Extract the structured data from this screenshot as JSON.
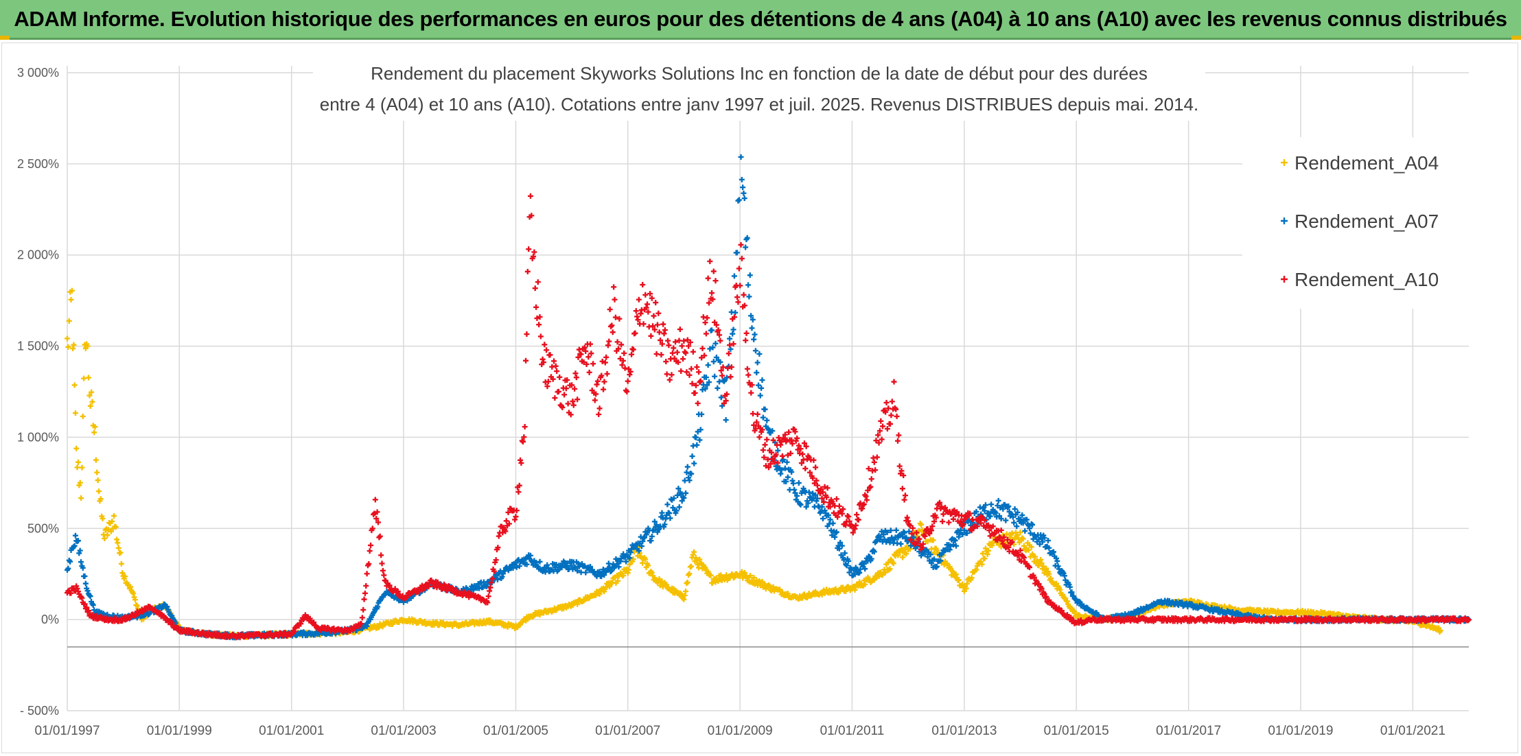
{
  "banner": {
    "title": "ADAM Informe. Evolution historique des performances en euros pour des détentions de 4 ans (A04) à 10 ans (A10) avec les revenus connus distribués"
  },
  "colors": {
    "banner_bg": "#7dc67e",
    "Rendement_A04": "#f5c000",
    "Rendement_A07": "#0070c0",
    "Rendement_A10": "#e8101e"
  },
  "chart_data": {
    "type": "scatter",
    "title_line1": "Rendement du placement Skyworks Solutions Inc en fonction de la date de début pour des durées",
    "title_line2": "entre 4 (A04) et 10 ans (A10). Cotations entre janv 1997 et juil. 2025. Revenus DISTRIBUES depuis mai. 2014.",
    "xlabel": "",
    "ylabel": "",
    "x_type": "date",
    "xlim": [
      "1997-01-01",
      "2022-01-01"
    ],
    "ylim": [
      -500,
      3000
    ],
    "grid": true,
    "marker": "+",
    "legend_position": "right",
    "y_ticks": [
      -500,
      0,
      500,
      1000,
      1500,
      2000,
      2500,
      3000
    ],
    "y_tick_labels": [
      "- 500%",
      "0%",
      "500%",
      "1 000%",
      "1 500%",
      "2 000%",
      "2 500%",
      "3 000%"
    ],
    "x_ticks": [
      "1997-01-01",
      "1999-01-01",
      "2001-01-01",
      "2003-01-01",
      "2005-01-01",
      "2007-01-01",
      "2009-01-01",
      "2011-01-01",
      "2013-01-01",
      "2015-01-01",
      "2017-01-01",
      "2019-01-01",
      "2021-01-01"
    ],
    "x_tick_labels": [
      "01/01/1997",
      "01/01/1999",
      "01/01/2001",
      "01/01/2003",
      "01/01/2005",
      "01/01/2007",
      "01/01/2009",
      "01/01/2011",
      "01/01/2013",
      "01/01/2015",
      "01/01/2017",
      "01/01/2019",
      "01/01/2021"
    ],
    "series": [
      {
        "name": "Rendement_A04",
        "x": [
          "1997-01-01",
          "1997-02-01",
          "1997-03-01",
          "1997-04-01",
          "1997-05-01",
          "1997-06-01",
          "1997-07-01",
          "1997-08-01",
          "1997-09-01",
          "1997-11-01",
          "1998-01-01",
          "1998-03-01",
          "1998-05-01",
          "1998-07-01",
          "1998-10-01",
          "1999-01-01",
          "1999-04-01",
          "1999-07-01",
          "2000-01-01",
          "2000-07-01",
          "2001-01-01",
          "2001-07-01",
          "2002-01-01",
          "2002-07-01",
          "2003-01-01",
          "2003-07-01",
          "2004-01-01",
          "2004-07-01",
          "2005-01-01",
          "2005-04-01",
          "2005-07-01",
          "2006-01-01",
          "2006-07-01",
          "2007-01-01",
          "2007-03-01",
          "2007-07-01",
          "2008-01-01",
          "2008-03-01",
          "2008-07-01",
          "2009-01-01",
          "2009-07-01",
          "2010-01-01",
          "2010-07-01",
          "2011-01-01",
          "2011-07-01",
          "2012-01-01",
          "2012-04-01",
          "2012-07-01",
          "2013-01-01",
          "2013-07-01",
          "2014-01-01",
          "2014-07-01",
          "2015-01-01",
          "2015-07-01",
          "2016-01-01",
          "2016-07-01",
          "2017-01-01",
          "2017-07-01",
          "2018-01-01",
          "2018-07-01",
          "2019-01-01",
          "2019-07-01",
          "2020-01-01",
          "2020-07-01",
          "2021-01-01",
          "2021-04-01",
          "2021-07-01"
        ],
        "values": [
          1500,
          1750,
          900,
          700,
          1600,
          1200,
          1000,
          650,
          450,
          550,
          250,
          150,
          0,
          50,
          80,
          -50,
          -70,
          -80,
          -90,
          -85,
          -80,
          -75,
          -70,
          -40,
          0,
          -20,
          -30,
          -10,
          -40,
          20,
          40,
          80,
          150,
          270,
          380,
          220,
          120,
          350,
          220,
          250,
          180,
          120,
          150,
          170,
          250,
          400,
          500,
          380,
          170,
          420,
          450,
          250,
          20,
          0,
          20,
          80,
          100,
          70,
          50,
          40,
          40,
          30,
          10,
          0,
          -10,
          -30,
          -60
        ]
      },
      {
        "name": "Rendement_A07",
        "x": [
          "1997-01-01",
          "1997-02-01",
          "1997-03-01",
          "1997-05-01",
          "1997-07-01",
          "1997-10-01",
          "1998-01-01",
          "1998-04-01",
          "1998-07-01",
          "1998-10-01",
          "1999-01-01",
          "1999-07-01",
          "2000-01-01",
          "2000-07-01",
          "2001-01-01",
          "2001-07-01",
          "2002-01-01",
          "2002-05-01",
          "2002-09-01",
          "2003-01-01",
          "2003-07-01",
          "2004-01-01",
          "2004-07-01",
          "2005-01-01",
          "2005-04-01",
          "2005-07-01",
          "2006-01-01",
          "2006-07-01",
          "2007-01-01",
          "2007-07-01",
          "2008-01-01",
          "2008-04-01",
          "2008-07-01",
          "2008-10-01",
          "2008-12-01",
          "2009-01-01",
          "2009-03-01",
          "2009-07-01",
          "2010-01-01",
          "2010-07-01",
          "2011-01-01",
          "2011-04-01",
          "2011-07-01",
          "2012-01-01",
          "2012-07-01",
          "2013-01-01",
          "2013-07-01",
          "2014-01-01",
          "2014-07-01",
          "2015-01-01",
          "2015-07-01",
          "2016-01-01",
          "2016-07-01",
          "2017-01-01",
          "2017-07-01",
          "2018-01-01",
          "2018-07-01",
          "2019-01-01",
          "2019-07-01",
          "2020-01-01",
          "2020-07-01",
          "2021-01-01",
          "2021-07-01",
          "2022-01-01"
        ],
        "values": [
          260,
          400,
          450,
          200,
          40,
          20,
          10,
          20,
          40,
          80,
          -60,
          -80,
          -90,
          -85,
          -80,
          -75,
          -60,
          -40,
          150,
          100,
          200,
          150,
          200,
          300,
          340,
          280,
          300,
          250,
          350,
          500,
          700,
          1000,
          1500,
          1200,
          1800,
          2600,
          1800,
          1000,
          700,
          600,
          250,
          300,
          450,
          450,
          300,
          500,
          620,
          550,
          400,
          100,
          0,
          30,
          100,
          80,
          50,
          20,
          0,
          0,
          0,
          0,
          0,
          0,
          0,
          0
        ]
      },
      {
        "name": "Rendement_A10",
        "x": [
          "1997-01-01",
          "1997-03-01",
          "1997-06-01",
          "1997-10-01",
          "1998-01-01",
          "1998-07-01",
          "1999-01-01",
          "1999-07-01",
          "2000-01-01",
          "2000-07-01",
          "2001-01-01",
          "2001-04-01",
          "2001-07-01",
          "2002-01-01",
          "2002-04-01",
          "2002-07-01",
          "2002-09-01",
          "2003-01-01",
          "2003-07-01",
          "2004-01-01",
          "2004-07-01",
          "2004-10-01",
          "2005-01-01",
          "2005-03-01",
          "2005-04-01",
          "2005-07-01",
          "2005-10-01",
          "2006-01-01",
          "2006-04-01",
          "2006-07-01",
          "2006-10-01",
          "2007-01-01",
          "2007-04-01",
          "2007-07-01",
          "2007-10-01",
          "2008-01-01",
          "2008-04-01",
          "2008-07-01",
          "2008-10-01",
          "2009-01-01",
          "2009-04-01",
          "2009-07-01",
          "2010-01-01",
          "2010-07-01",
          "2011-01-01",
          "2011-04-01",
          "2011-07-01",
          "2011-10-01",
          "2012-01-01",
          "2012-04-01",
          "2012-07-01",
          "2013-01-01",
          "2013-07-01",
          "2014-01-01",
          "2014-07-01",
          "2015-01-01",
          "2015-04-01",
          "2015-07-01",
          "2016-01-01",
          "2017-01-01",
          "2018-01-01",
          "2019-01-01",
          "2020-01-01",
          "2021-01-01",
          "2022-01-01"
        ],
        "values": [
          150,
          170,
          20,
          0,
          0,
          70,
          -60,
          -80,
          -90,
          -85,
          -80,
          20,
          -50,
          -60,
          -30,
          650,
          200,
          120,
          200,
          150,
          100,
          500,
          600,
          1100,
          2200,
          1400,
          1300,
          1200,
          1500,
          1200,
          1700,
          1250,
          1800,
          1600,
          1400,
          1500,
          1300,
          1900,
          1200,
          1950,
          1100,
          900,
          1000,
          700,
          500,
          700,
          1000,
          1200,
          500,
          400,
          600,
          550,
          500,
          350,
          100,
          -20,
          0,
          0,
          0,
          0,
          0,
          0,
          0,
          0,
          0
        ]
      }
    ]
  }
}
